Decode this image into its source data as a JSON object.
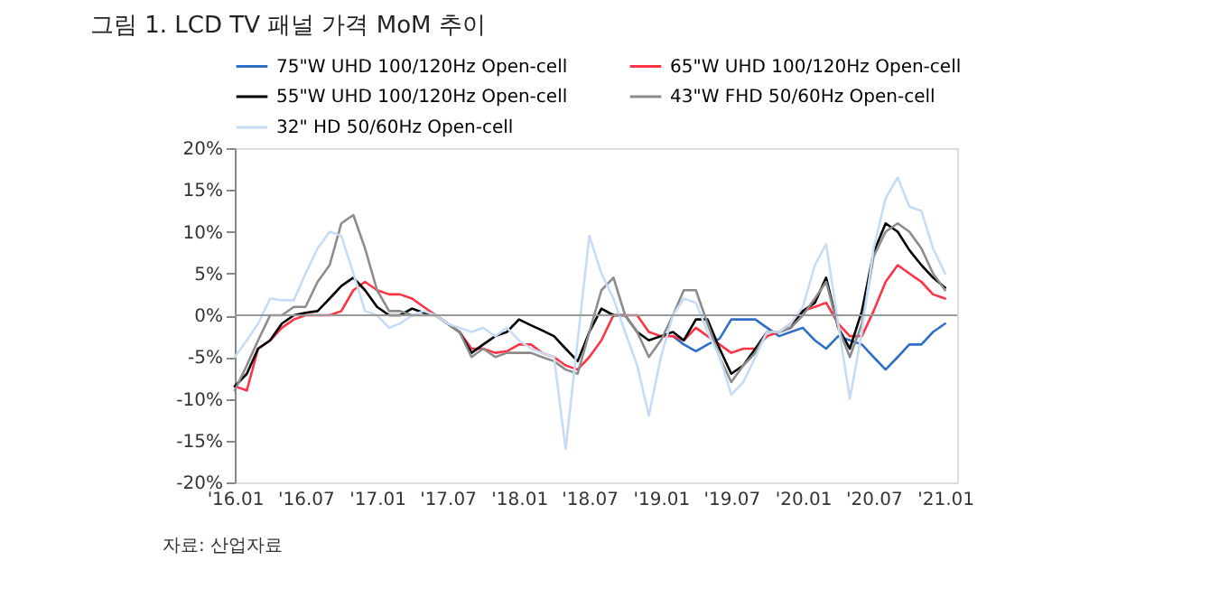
{
  "chart_data": {
    "type": "line",
    "title": "그림 1. LCD TV 패널 가격 MoM 추이",
    "annotations": [
      "자료: 산업자료"
    ],
    "x": [
      "2016-01",
      "2016-02",
      "2016-03",
      "2016-04",
      "2016-05",
      "2016-06",
      "2016-07",
      "2016-08",
      "2016-09",
      "2016-10",
      "2016-11",
      "2016-12",
      "2017-01",
      "2017-02",
      "2017-03",
      "2017-04",
      "2017-05",
      "2017-06",
      "2017-07",
      "2017-08",
      "2017-09",
      "2017-10",
      "2017-11",
      "2017-12",
      "2018-01",
      "2018-02",
      "2018-03",
      "2018-04",
      "2018-05",
      "2018-06",
      "2018-07",
      "2018-08",
      "2018-09",
      "2018-10",
      "2018-11",
      "2018-12",
      "2019-01",
      "2019-02",
      "2019-03",
      "2019-04",
      "2019-05",
      "2019-06",
      "2019-07",
      "2019-08",
      "2019-09",
      "2019-10",
      "2019-11",
      "2019-12",
      "2020-01",
      "2020-02",
      "2020-03",
      "2020-04",
      "2020-05",
      "2020-06",
      "2020-07",
      "2020-08",
      "2020-09",
      "2020-10",
      "2020-11",
      "2020-12",
      "2021-01"
    ],
    "series": [
      {
        "name": "75\"W UHD 100/120Hz Open-cell",
        "color": "#2f6fc8",
        "values": [
          null,
          null,
          null,
          null,
          null,
          null,
          null,
          null,
          null,
          null,
          null,
          null,
          null,
          null,
          null,
          null,
          null,
          null,
          null,
          null,
          null,
          null,
          null,
          null,
          null,
          null,
          null,
          null,
          null,
          null,
          null,
          null,
          null,
          null,
          null,
          null,
          null,
          -2.5,
          -3.5,
          -4.3,
          -3.5,
          -2.8,
          -0.5,
          -0.5,
          -0.5,
          -1.5,
          -2.5,
          -2,
          -1.5,
          -3,
          -4,
          -2.5,
          -3,
          -3.5,
          -5,
          -6.5,
          -5,
          -3.5,
          -3.5,
          -2,
          -1
        ]
      },
      {
        "name": "65\"W UHD 100/120Hz Open-cell",
        "color": "#ff3344",
        "values": [
          -8.5,
          -9,
          -4,
          -3,
          -1.5,
          -0.5,
          0,
          0,
          0,
          0.5,
          3,
          4,
          3,
          2.5,
          2.5,
          2,
          1,
          0,
          -1,
          -2,
          -4,
          -4,
          -4.5,
          -4.3,
          -3.5,
          -3.5,
          -4.5,
          -5,
          -6,
          -6.5,
          -5,
          -3,
          0,
          0,
          0,
          -2,
          -2.5,
          -2.5,
          -3,
          -1.5,
          -2.5,
          -3.5,
          -4.5,
          -4,
          -4,
          -2.5,
          -2,
          -1,
          0.5,
          1,
          1.5,
          -1,
          -2.5,
          -2.5,
          0.5,
          4,
          6,
          5,
          4,
          2.5,
          2
        ]
      },
      {
        "name": "55\"W UHD 100/120Hz Open-cell",
        "color": "#000000",
        "values": [
          -8.5,
          -7,
          -4,
          -3,
          -1,
          0,
          0.3,
          0.5,
          2,
          3.5,
          4.5,
          3,
          1,
          0,
          0,
          0.8,
          0.3,
          0,
          -1,
          -2,
          -4.5,
          -3.5,
          -2.5,
          -2,
          -0.5,
          -1.2,
          -1.8,
          -2.5,
          -4,
          -5.5,
          -2,
          0.8,
          0,
          0,
          -2,
          -3,
          -2.5,
          -2,
          -3,
          -0.5,
          -0.5,
          -4,
          -7,
          -6,
          -4,
          -2,
          -2,
          -1.5,
          0.5,
          1.5,
          4.5,
          -1.5,
          -4,
          0.5,
          7.5,
          11,
          10,
          7.8,
          6,
          4.5,
          3.3
        ]
      },
      {
        "name": "43\"W FHD 50/60Hz Open-cell",
        "color": "#8c8c8c",
        "values": [
          -9,
          -6,
          -3,
          0,
          0,
          1,
          1,
          4,
          6,
          11,
          12,
          8,
          3,
          0.5,
          0.5,
          0,
          0,
          0,
          -1,
          -2,
          -5,
          -4,
          -5,
          -4.5,
          -4.5,
          -4.5,
          -5,
          -5.5,
          -6.5,
          -7,
          -2,
          3,
          4.5,
          0,
          -2,
          -5,
          -3,
          0,
          3,
          3,
          -1,
          -5,
          -8,
          -6,
          -4.5,
          -2,
          -2,
          -1.5,
          0,
          2,
          4,
          -1.5,
          -5,
          -1,
          7,
          10,
          11,
          10,
          8,
          5,
          3
        ]
      },
      {
        "name": "32\" HD 50/60Hz Open-cell",
        "color": "#c6dcf5",
        "values": [
          -5,
          -3,
          -1,
          2,
          1.8,
          1.8,
          5,
          8,
          10,
          9.5,
          5,
          0.5,
          0,
          -1.5,
          -1,
          0,
          0.5,
          0,
          -1,
          -1.5,
          -2,
          -1.5,
          -2.5,
          -1.5,
          -3,
          -4,
          -4.5,
          -5,
          -16,
          -3,
          9.5,
          5,
          2,
          -2,
          -6,
          -12,
          -5,
          0,
          2,
          1.5,
          -2,
          -5,
          -9.5,
          -8,
          -5,
          -2,
          -2,
          -1,
          1,
          6,
          8.5,
          -1,
          -10,
          -2,
          8,
          14,
          16.5,
          13,
          12.5,
          8,
          5
        ]
      }
    ],
    "xlim": [
      "2016-01",
      "2021-02"
    ],
    "xticks": [
      {
        "value": "2016-01",
        "label": "'16.01"
      },
      {
        "value": "2016-07",
        "label": "'16.07"
      },
      {
        "value": "2017-01",
        "label": "'17.01"
      },
      {
        "value": "2017-07",
        "label": "'17.07"
      },
      {
        "value": "2018-01",
        "label": "'18.01"
      },
      {
        "value": "2018-07",
        "label": "'18.07"
      },
      {
        "value": "2019-01",
        "label": "'19.01"
      },
      {
        "value": "2019-07",
        "label": "'19.07"
      },
      {
        "value": "2020-01",
        "label": "'20.01"
      },
      {
        "value": "2020-07",
        "label": "'20.07"
      },
      {
        "value": "2021-01",
        "label": "'21.01"
      }
    ],
    "ylim": [
      -20,
      20
    ],
    "yticks": [
      {
        "value": -20,
        "label": "-20%"
      },
      {
        "value": -15,
        "label": "-15%"
      },
      {
        "value": -10,
        "label": "-10%"
      },
      {
        "value": -5,
        "label": "-5%"
      },
      {
        "value": 0,
        "label": "0%"
      },
      {
        "value": 5,
        "label": "5%"
      },
      {
        "value": 10,
        "label": "10%"
      },
      {
        "value": 15,
        "label": "15%"
      },
      {
        "value": 20,
        "label": "20%"
      }
    ],
    "ref_lines": [
      {
        "axis": "y",
        "value": 0,
        "color": "#999999"
      }
    ],
    "grid": false,
    "legend": "top",
    "marker": "none",
    "line_style": "solid"
  }
}
